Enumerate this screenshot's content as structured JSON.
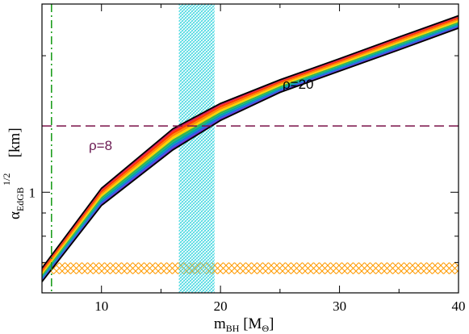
{
  "chart_data": {
    "type": "line",
    "title": "",
    "xlabel": {
      "main": "m",
      "sub": "BH",
      "unit_open": " [M",
      "unit_sub": "Θ",
      "unit_close": "]"
    },
    "ylabel": {
      "main": "α",
      "sub": "EdGB",
      "sup": "1/2",
      "unit": " [km]"
    },
    "x_ticks": [
      10,
      20,
      30,
      40
    ],
    "x_tick_labels": [
      "10",
      "20",
      "30",
      "40"
    ],
    "xlim": [
      5,
      40
    ],
    "y_scale": "log",
    "ylim": [
      0.6,
      2.6
    ],
    "y_ticks": [
      1
    ],
    "y_tick_labels": [
      "1"
    ],
    "grid": false,
    "legend": "none",
    "x": [
      5,
      10,
      16,
      20,
      25,
      30,
      35,
      40
    ],
    "band_colors": [
      "#d4145a",
      "#ff3b00",
      "#ff8c00",
      "#ffd400",
      "#39b54a",
      "#00a99d",
      "#1d6fe0",
      "#6a2ed6"
    ],
    "band_upper_rho8": [
      0.68,
      1.02,
      1.38,
      1.57,
      1.77,
      1.97,
      2.2,
      2.45
    ],
    "band_lower_rho20": [
      0.635,
      0.935,
      1.24,
      1.44,
      1.66,
      1.85,
      2.06,
      2.3
    ],
    "outline_color": "#000000",
    "horizontal_line": {
      "y": 1.4,
      "color": "#7a1048",
      "style": "dashed"
    },
    "vertical_line": {
      "x": 5.8,
      "color": "#1e9e1e",
      "style": "dash-dot"
    },
    "vertical_band": {
      "x_range": [
        16.5,
        19.5
      ],
      "color": "#3fd6e0",
      "pattern": "hatched"
    },
    "horizontal_band": {
      "y_range": [
        0.66,
        0.7
      ],
      "color": "#ff9a00",
      "pattern": "cross-hatched"
    },
    "annotations": [
      {
        "text": "ρ=8",
        "x": 7.5,
        "y": 1.17,
        "color": "#6b1a52"
      },
      {
        "text": "ρ=20",
        "x": 27,
        "y": 1.51,
        "color": "#000000"
      }
    ]
  }
}
